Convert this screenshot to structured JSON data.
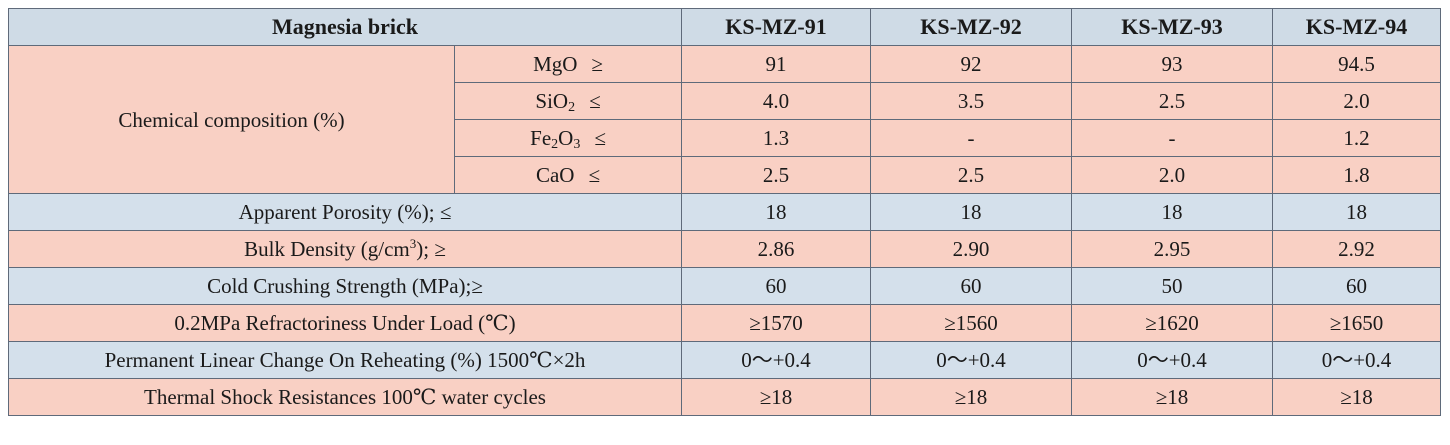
{
  "table": {
    "header": {
      "title": "Magnesia brick",
      "grades": [
        "KS-MZ-91",
        "KS-MZ-92",
        "KS-MZ-93",
        "KS-MZ-94"
      ]
    },
    "composition": {
      "label": "Chemical composition (%)",
      "rows": [
        {
          "base": "MgO",
          "sub": "",
          "cond": "≥",
          "values": [
            "91",
            "92",
            "93",
            "94.5"
          ]
        },
        {
          "base": "SiO",
          "sub": "2",
          "cond": "≤",
          "values": [
            "4.0",
            "3.5",
            "2.5",
            "2.0"
          ]
        },
        {
          "base": "Fe",
          "sub": "2",
          "base2": "O",
          "sub2": "3",
          "cond": "≤",
          "values": [
            "1.3",
            "-",
            "-",
            "1.2"
          ]
        },
        {
          "base": "CaO",
          "sub": "",
          "cond": "≤",
          "values": [
            "2.5",
            "2.5",
            "2.0",
            "1.8"
          ]
        }
      ]
    },
    "properties": [
      {
        "label": "Apparent Porosity (%); ≤",
        "values": [
          "18",
          "18",
          "18",
          "18"
        ]
      },
      {
        "label_pre": "Bulk Density (g/cm",
        "label_sup": "3",
        "label_post": "); ≥",
        "values": [
          "2.86",
          "2.90",
          "2.95",
          "2.92"
        ]
      },
      {
        "label": "Cold Crushing Strength (MPa);≥",
        "values": [
          "60",
          "60",
          "50",
          "60"
        ]
      },
      {
        "label": "0.2MPa Refractoriness Under Load (℃)",
        "values": [
          "≥1570",
          "≥1560",
          "≥1620",
          "≥1650"
        ]
      },
      {
        "label": "Permanent Linear Change On Reheating (%) 1500℃×2h",
        "values": [
          "0～+0.4",
          "0～+0.4",
          "0～+0.4",
          "0～+0.4"
        ]
      },
      {
        "label": "Thermal Shock Resistances 100℃ water cycles",
        "values": [
          "≥18",
          "≥18",
          "≥18",
          "≥18"
        ]
      }
    ]
  },
  "colors": {
    "header_bg": "#cfdbe6",
    "pink_row": "#f9d0c4",
    "blue_row": "#d4e0eb",
    "border": "#5f6a7a"
  }
}
